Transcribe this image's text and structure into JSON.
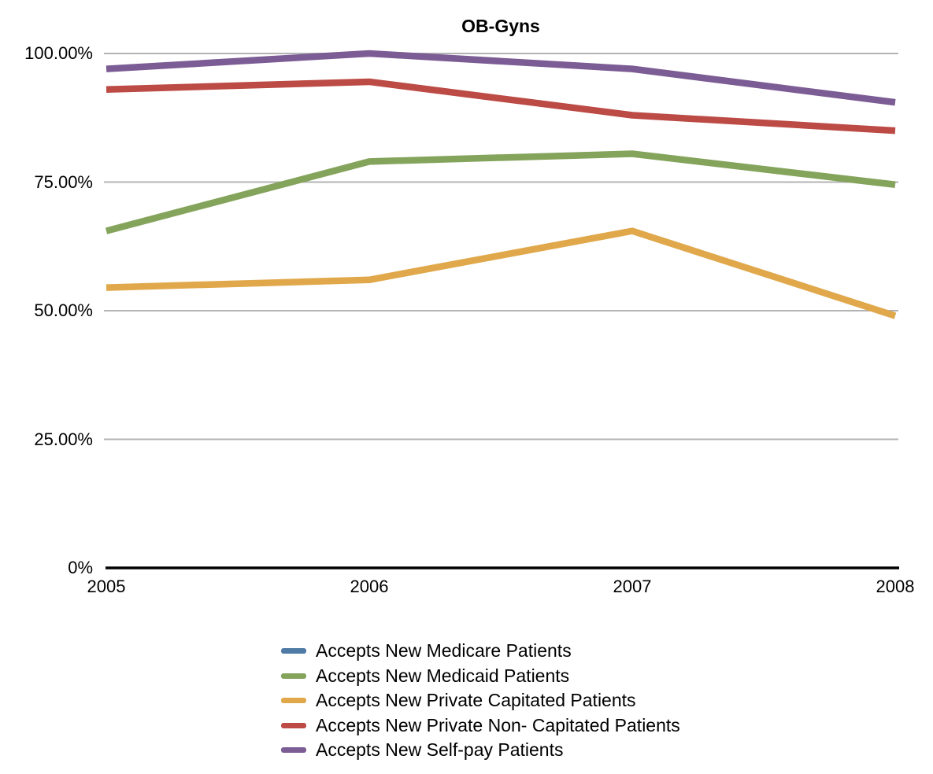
{
  "chart_data": {
    "type": "line",
    "title": "OB-Gyns",
    "categories": [
      "2005",
      "2006",
      "2007",
      "2008"
    ],
    "xlabel": "",
    "ylabel": "",
    "ylim": [
      0,
      100
    ],
    "grid": true,
    "legend_position": "bottom",
    "axis_color": "#000000",
    "gridline_color": "#b3b3b3",
    "yticks": [
      {
        "value": 100,
        "label": "100.00%"
      },
      {
        "value": 75,
        "label": "75.00%"
      },
      {
        "value": 50,
        "label": "50.00%"
      },
      {
        "value": 25,
        "label": "25.00%"
      },
      {
        "value": 0,
        "label": "0%"
      }
    ],
    "series": [
      {
        "name": "Accepts New Medicare Patients",
        "color": "#4f7aa6",
        "values": [
          null,
          null,
          null,
          null
        ],
        "visible_in_plot": false
      },
      {
        "name": "Accepts New Medicaid Patients",
        "color": "#84a45c",
        "values": [
          65.5,
          79,
          80.5,
          74.5
        ],
        "visible_in_plot": true
      },
      {
        "name": "Accepts New Private Capitated Patients",
        "color": "#e0a84a",
        "values": [
          54.5,
          56,
          65.5,
          49
        ],
        "visible_in_plot": true
      },
      {
        "name": "Accepts New Private Non- Capitated Patients",
        "color": "#bc4a45",
        "values": [
          93,
          94.5,
          88,
          85
        ],
        "visible_in_plot": true
      },
      {
        "name": "Accepts New Self-pay Patients",
        "color": "#7c5c94",
        "values": [
          97,
          100,
          97,
          90.5
        ],
        "visible_in_plot": true
      }
    ]
  }
}
